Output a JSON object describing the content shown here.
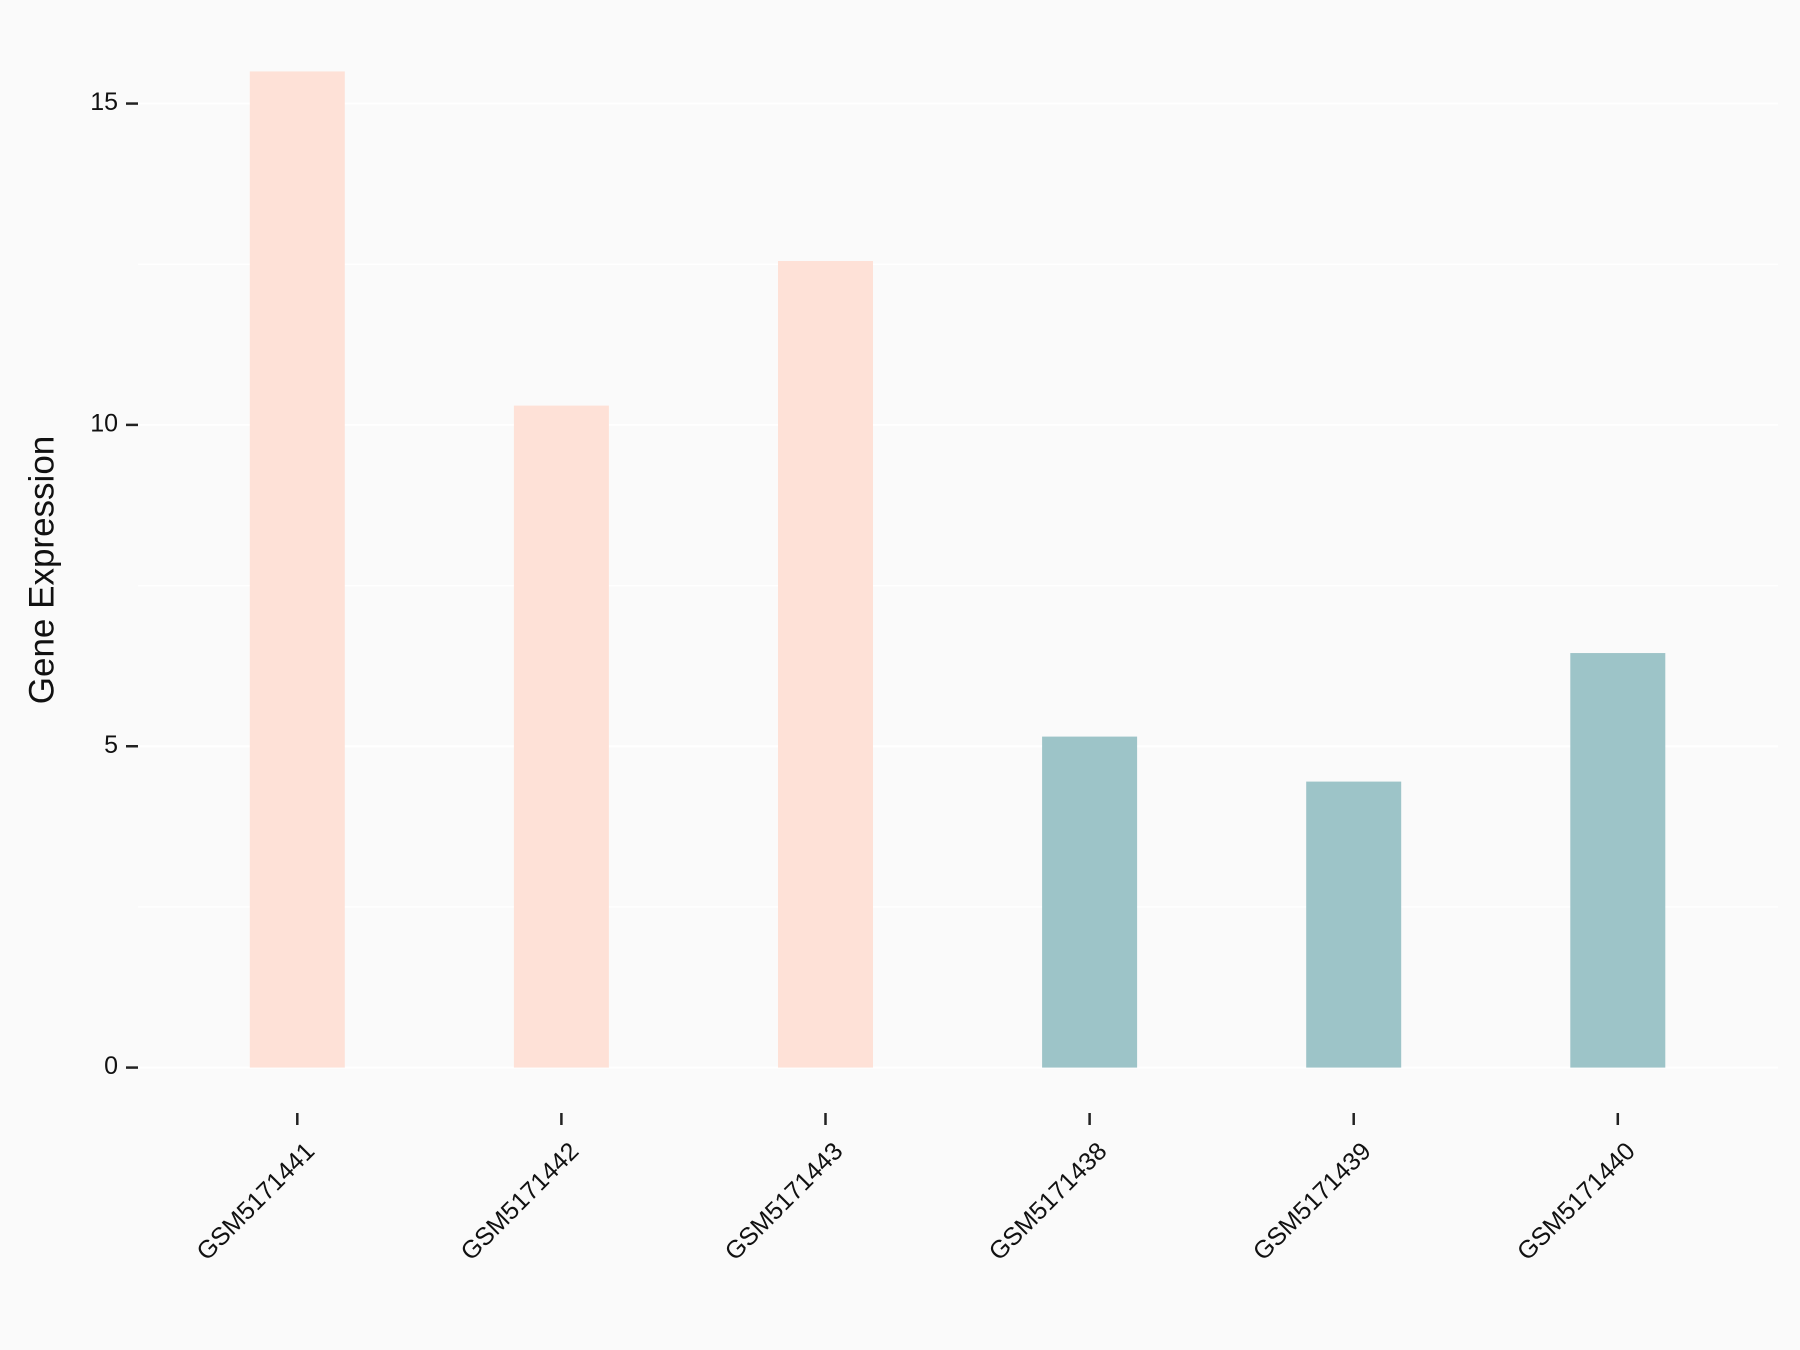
{
  "chart_data": {
    "type": "bar",
    "ylabel": "Gene Expression",
    "categories": [
      "GSM5171441",
      "GSM5171442",
      "GSM5171443",
      "GSM5171438",
      "GSM5171439",
      "GSM5171440"
    ],
    "values": [
      15.5,
      10.3,
      12.55,
      5.15,
      4.45,
      6.45
    ],
    "colors": [
      "#fee1d7",
      "#fee1d7",
      "#fee1d7",
      "#9dc4c8",
      "#9dc4c8",
      "#9dc4c8"
    ],
    "ylim": [
      -0.8,
      16.3
    ],
    "yticks": [
      0,
      5,
      10,
      15
    ],
    "minor_gridlines": [
      2.5,
      7.5,
      12.5
    ],
    "grid": true
  }
}
